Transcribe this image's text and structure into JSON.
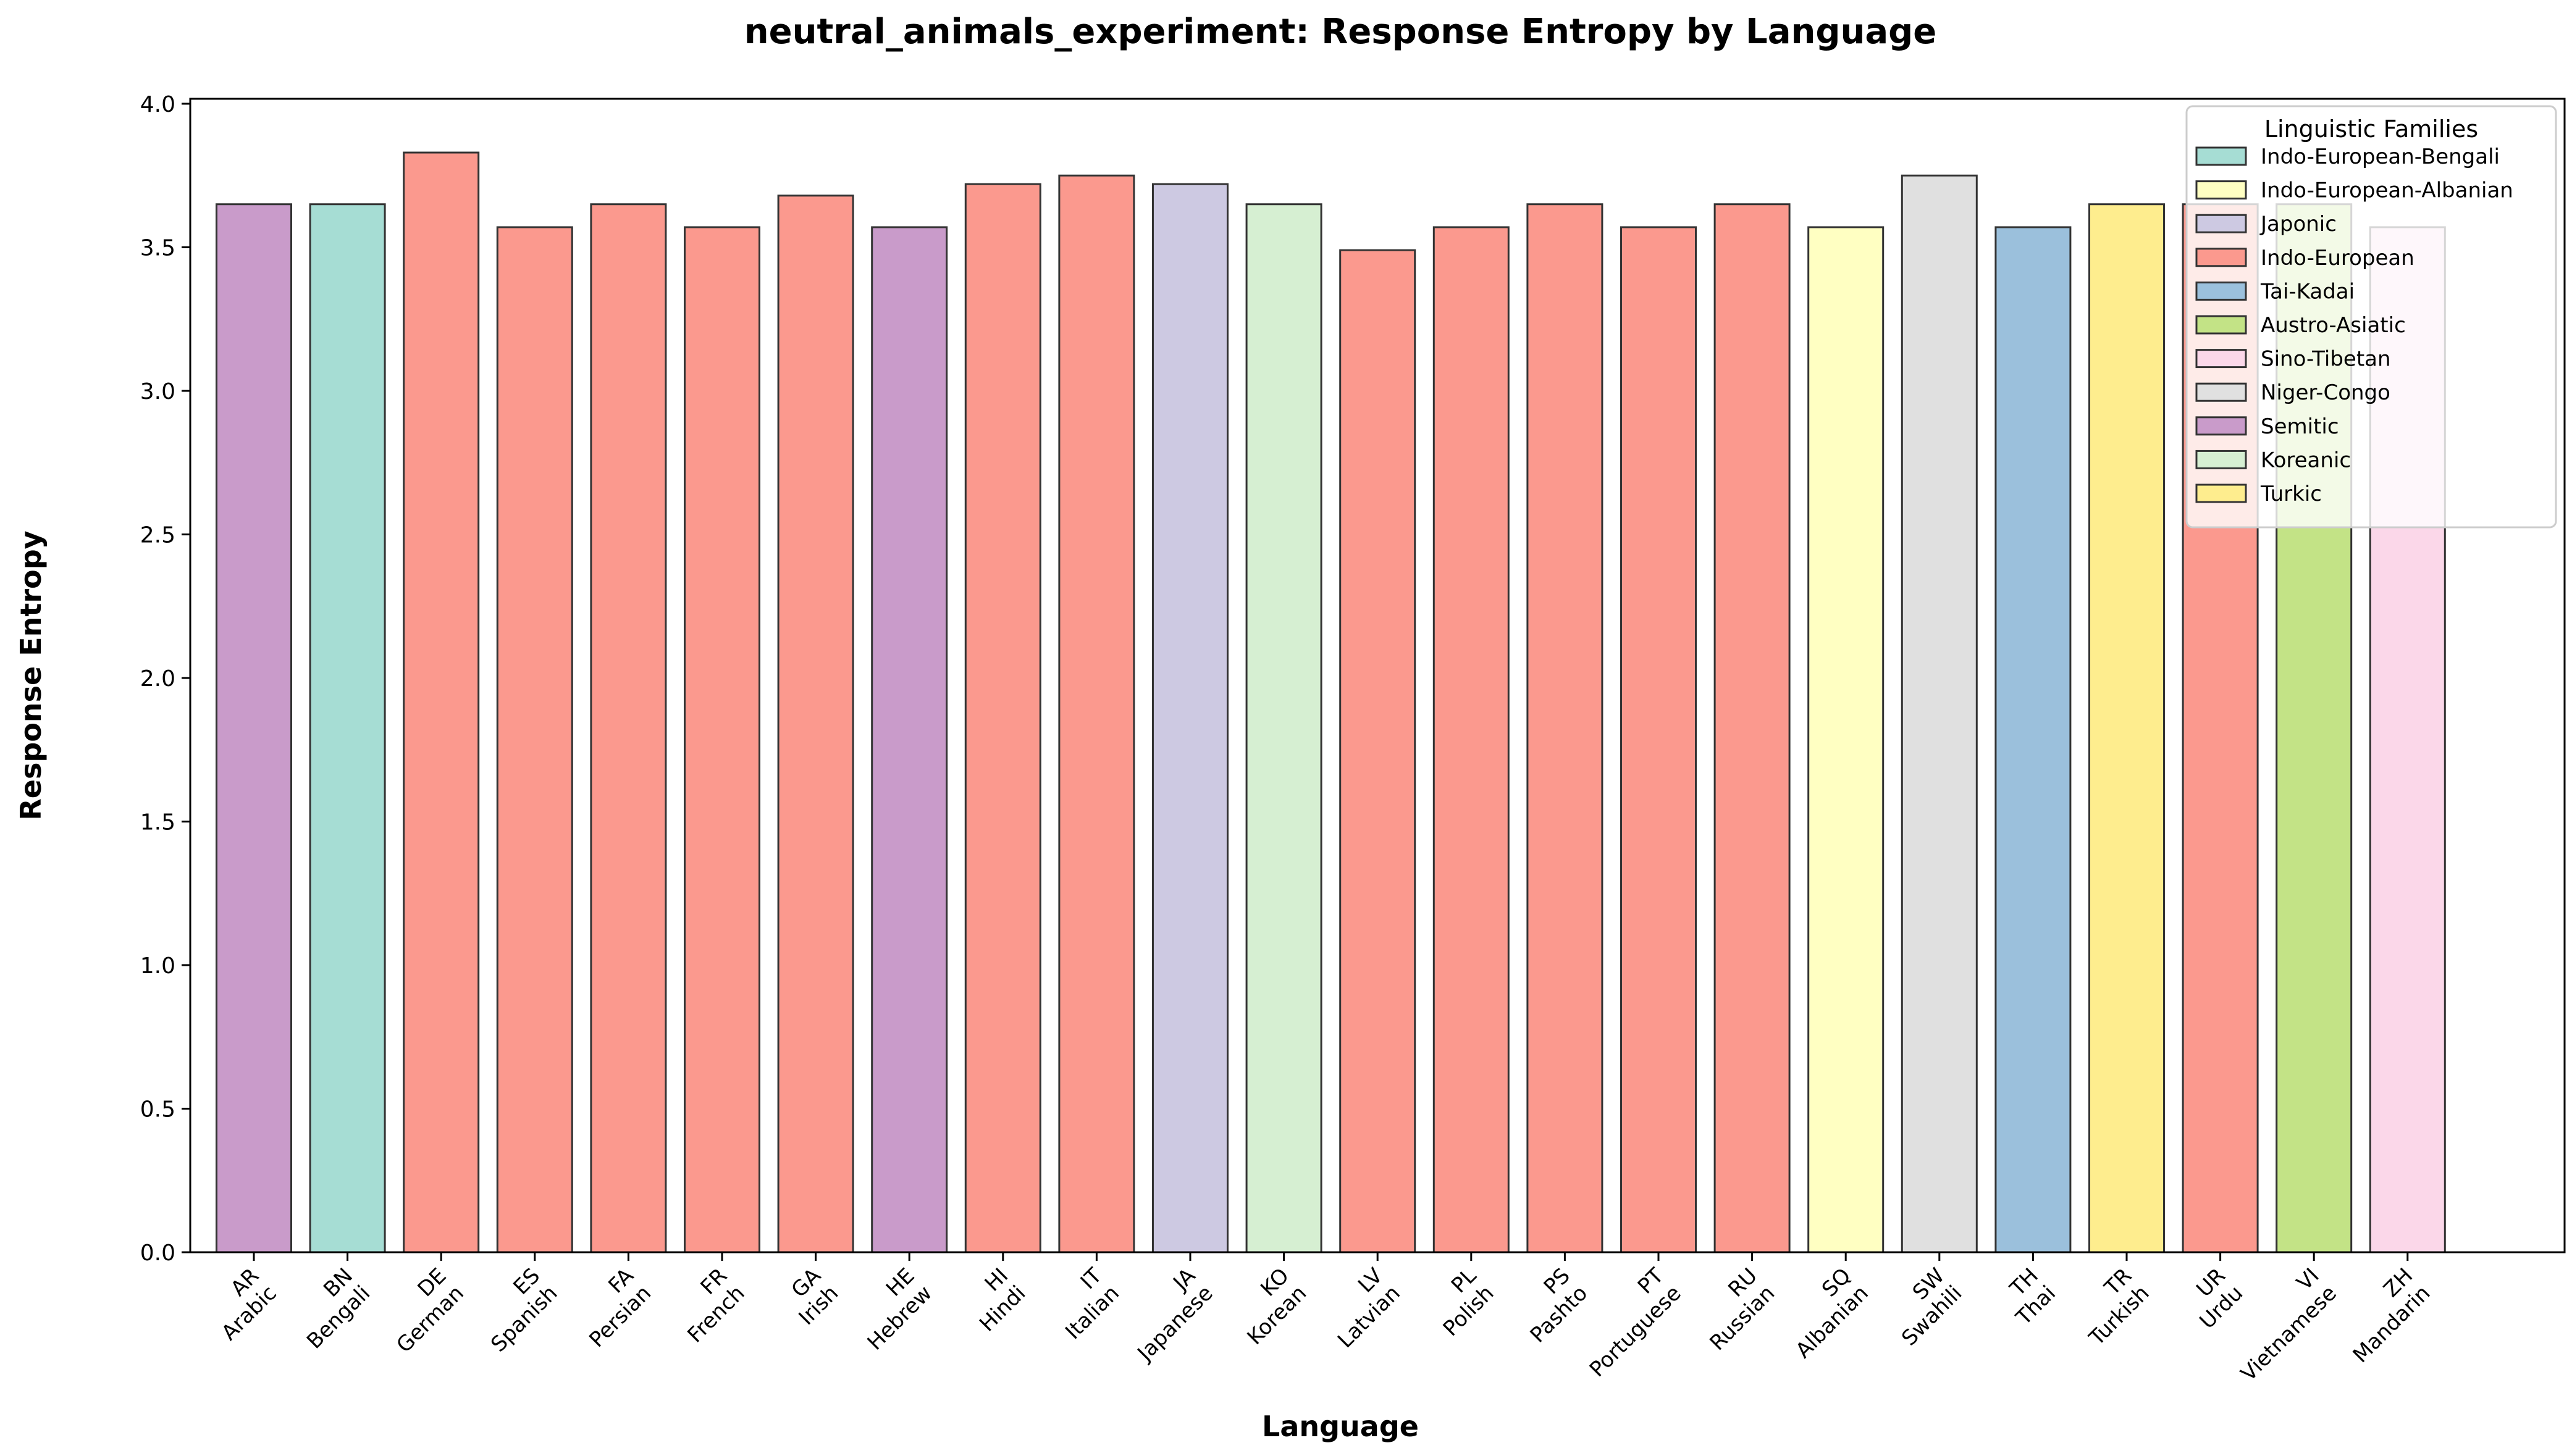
{
  "chart_data": {
    "type": "bar",
    "title": "neutral_animals_experiment: Response Entropy by Language",
    "xlabel": "Language",
    "ylabel": "Response Entropy",
    "ylim": [
      0,
      4.0
    ],
    "yticks": [
      "0.0",
      "0.5",
      "1.0",
      "1.5",
      "2.0",
      "2.5",
      "3.0",
      "3.5",
      "4.0"
    ],
    "categories": [
      {
        "code": "AR",
        "name": "Arabic",
        "family": "Semitic",
        "value": 3.65
      },
      {
        "code": "BN",
        "name": "Bengali",
        "family": "Indo-European-Bengali",
        "value": 3.65
      },
      {
        "code": "DE",
        "name": "German",
        "family": "Indo-European",
        "value": 3.83
      },
      {
        "code": "ES",
        "name": "Spanish",
        "family": "Indo-European",
        "value": 3.57
      },
      {
        "code": "FA",
        "name": "Persian",
        "family": "Indo-European",
        "value": 3.65
      },
      {
        "code": "FR",
        "name": "French",
        "family": "Indo-European",
        "value": 3.57
      },
      {
        "code": "GA",
        "name": "Irish",
        "family": "Indo-European",
        "value": 3.68
      },
      {
        "code": "HE",
        "name": "Hebrew",
        "family": "Semitic",
        "value": 3.57
      },
      {
        "code": "HI",
        "name": "Hindi",
        "family": "Indo-European",
        "value": 3.72
      },
      {
        "code": "IT",
        "name": "Italian",
        "family": "Indo-European",
        "value": 3.75
      },
      {
        "code": "JA",
        "name": "Japanese",
        "family": "Japonic",
        "value": 3.72
      },
      {
        "code": "KO",
        "name": "Korean",
        "family": "Koreanic",
        "value": 3.65
      },
      {
        "code": "LV",
        "name": "Latvian",
        "family": "Indo-European",
        "value": 3.49
      },
      {
        "code": "PL",
        "name": "Polish",
        "family": "Indo-European",
        "value": 3.57
      },
      {
        "code": "PS",
        "name": "Pashto",
        "family": "Indo-European",
        "value": 3.65
      },
      {
        "code": "PT",
        "name": "Portuguese",
        "family": "Indo-European",
        "value": 3.57
      },
      {
        "code": "RU",
        "name": "Russian",
        "family": "Indo-European",
        "value": 3.65
      },
      {
        "code": "SQ",
        "name": "Albanian",
        "family": "Indo-European-Albanian",
        "value": 3.57
      },
      {
        "code": "SW",
        "name": "Swahili",
        "family": "Niger-Congo",
        "value": 3.75
      },
      {
        "code": "TH",
        "name": "Thai",
        "family": "Tai-Kadai",
        "value": 3.57
      },
      {
        "code": "TR",
        "name": "Turkish",
        "family": "Turkic",
        "value": 3.65
      },
      {
        "code": "UR",
        "name": "Urdu",
        "family": "Indo-European",
        "value": 3.65
      },
      {
        "code": "VI",
        "name": "Vietnamese",
        "family": "Austro-Asiatic",
        "value": 3.65
      },
      {
        "code": "ZH",
        "name": "Mandarin",
        "family": "Sino-Tibetan",
        "value": 3.57
      }
    ],
    "legend": {
      "title": "Linguistic Families",
      "placement": "top-right",
      "entries": [
        {
          "label": "Indo-European-Bengali",
          "color": "#a6ddd4"
        },
        {
          "label": "Indo-European-Albanian",
          "color": "#ffffc2"
        },
        {
          "label": "Japonic",
          "color": "#cdc9e2"
        },
        {
          "label": "Indo-European",
          "color": "#fb998e"
        },
        {
          "label": "Tai-Kadai",
          "color": "#9bc0dc"
        },
        {
          "label": "Austro-Asiatic",
          "color": "#c3e386"
        },
        {
          "label": "Sino-Tibetan",
          "color": "#fbd7e9"
        },
        {
          "label": "Niger-Congo",
          "color": "#e0e0e0"
        },
        {
          "label": "Semitic",
          "color": "#c99bca"
        },
        {
          "label": "Koreanic",
          "color": "#d6efd2"
        },
        {
          "label": "Turkic",
          "color": "#feed8e"
        }
      ]
    },
    "grid": false
  }
}
